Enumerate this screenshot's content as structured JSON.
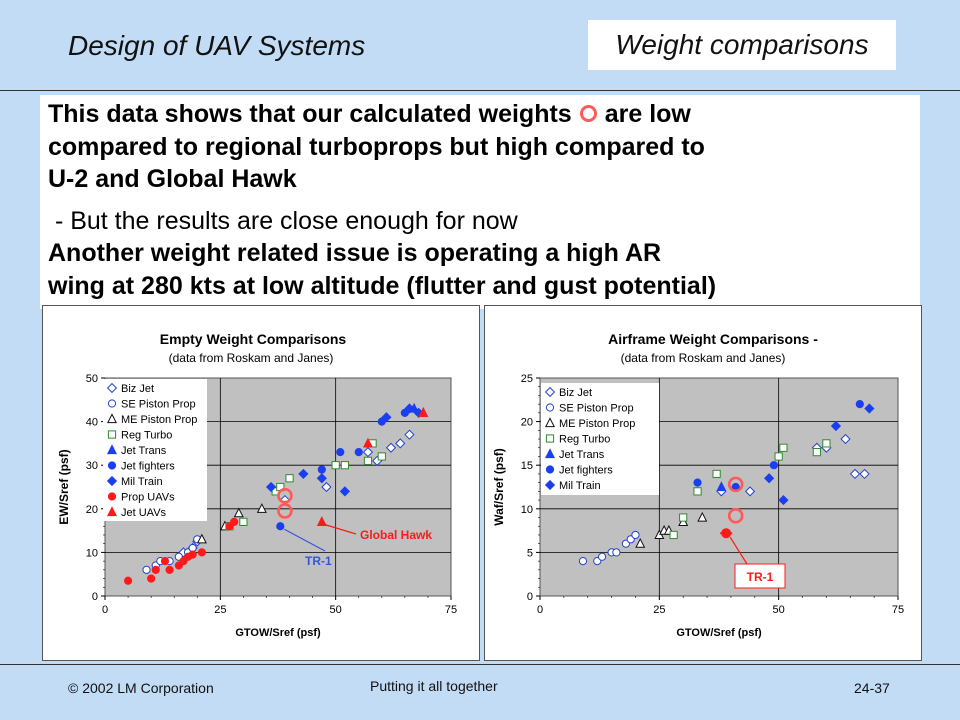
{
  "header": {
    "title": "Design of UAV Systems",
    "section": "Weight comparisons"
  },
  "body": {
    "p1_a": "This data shows that our calculated weights",
    "p1_b": "are low",
    "p1_line2": "compared to regional turboprops but high compared to",
    "p1_line3": "U-2 and Global Hawk",
    "p2": " - But the results are close enough for now",
    "p3_line1": "Another weight related issue is operating a high AR",
    "p3_line2": "wing at 280 kts at low altitude (flutter and gust potential)"
  },
  "footer": {
    "copyright": "© 2002 LM Corporation",
    "center": "Putting it all together",
    "page": "24-37"
  },
  "colors": {
    "background": "#c2dcf6",
    "calc_marker": "#ff5a5a",
    "blue": "#1a3ff0",
    "red": "#ff1a1a",
    "green": "#2e8b2e",
    "plot_bg": "#c0c0c0"
  },
  "chart_data": [
    {
      "type": "scatter",
      "title": "Empty Weight Comparisons",
      "subtitle": "(data from Roskam and Janes)",
      "xlabel": "GTOW/Sref (psf)",
      "ylabel": "EW/Sref (psf)",
      "xlim": [
        0,
        75
      ],
      "ylim": [
        0,
        50
      ],
      "xticks": [
        "0",
        "25",
        "50",
        "75"
      ],
      "yticks": [
        "0",
        "10",
        "20",
        "30",
        "40",
        "50"
      ],
      "grid": true,
      "legend": "top-left",
      "series": [
        {
          "name": "Biz Jet",
          "marker": "diamond-open",
          "color": "#2244cc",
          "points": [
            [
              17,
              10
            ],
            [
              19,
              11
            ],
            [
              20,
              12.5
            ],
            [
              39,
              22
            ],
            [
              48,
              25
            ],
            [
              57,
              33
            ],
            [
              59,
              31
            ],
            [
              62,
              34
            ],
            [
              64,
              35
            ],
            [
              66,
              37
            ]
          ]
        },
        {
          "name": "SE Piston Prop",
          "marker": "circle-open",
          "color": "#2244cc",
          "points": [
            [
              9,
              6
            ],
            [
              11,
              7
            ],
            [
              12,
              8
            ],
            [
              14,
              8
            ],
            [
              16,
              9
            ],
            [
              18,
              10
            ],
            [
              19,
              11
            ],
            [
              20,
              13
            ]
          ]
        },
        {
          "name": "ME Piston Prop",
          "marker": "triangle-open",
          "color": "#111111",
          "points": [
            [
              21,
              13
            ],
            [
              26,
              16
            ],
            [
              29,
              19
            ],
            [
              34,
              20
            ]
          ]
        },
        {
          "name": "Reg Turbo",
          "marker": "square-open",
          "color": "#2e8b2e",
          "points": [
            [
              27,
              16
            ],
            [
              30,
              17
            ],
            [
              37,
              24
            ],
            [
              38,
              25
            ],
            [
              40,
              27
            ],
            [
              50,
              30
            ],
            [
              52,
              30
            ],
            [
              57,
              31
            ],
            [
              58,
              35
            ],
            [
              60,
              32
            ]
          ]
        },
        {
          "name": "Jet Trans",
          "marker": "triangle",
          "color": "#1a3ff0",
          "points": [
            [
              67,
              43
            ],
            [
              69,
              42
            ]
          ]
        },
        {
          "name": "Jet fighters",
          "marker": "circle",
          "color": "#1a3ff0",
          "points": [
            [
              38,
              16
            ],
            [
              47,
              29
            ],
            [
              51,
              33
            ],
            [
              55,
              33
            ],
            [
              60,
              40
            ],
            [
              65,
              42
            ]
          ]
        },
        {
          "name": "Mil Train",
          "marker": "diamond",
          "color": "#1a3ff0",
          "points": [
            [
              36,
              25
            ],
            [
              43,
              28
            ],
            [
              47,
              27
            ],
            [
              52,
              24
            ],
            [
              61,
              41
            ],
            [
              66,
              43
            ],
            [
              68,
              42
            ]
          ]
        },
        {
          "name": "Prop UAVs",
          "marker": "circle",
          "color": "#ff1a1a",
          "points": [
            [
              5,
              3.5
            ],
            [
              10,
              4
            ],
            [
              11,
              6
            ],
            [
              13,
              8
            ],
            [
              14,
              6
            ],
            [
              16,
              7
            ],
            [
              17,
              8
            ],
            [
              18,
              9
            ],
            [
              19,
              9.5
            ],
            [
              21,
              10
            ],
            [
              27,
              16
            ],
            [
              28,
              17
            ]
          ]
        },
        {
          "name": "Jet UAVs",
          "marker": "triangle",
          "color": "#ff1a1a",
          "points": [
            [
              47,
              17
            ],
            [
              57,
              35
            ],
            [
              69,
              42
            ]
          ]
        }
      ],
      "calculated_points": [
        [
          39,
          23
        ],
        [
          39,
          19.5
        ]
      ],
      "annotations": [
        {
          "text": "Global Hawk",
          "target": [
            47,
            17
          ],
          "color": "#ff1a1a"
        },
        {
          "text": "TR-1",
          "target": [
            38,
            16
          ],
          "color": "#3355dd"
        }
      ]
    },
    {
      "type": "scatter",
      "title": "Airframe Weight Comparisons -",
      "subtitle": "(data from Roskam and Janes)",
      "xlabel": "GTOW/Sref (psf)",
      "ylabel": "Waf/Sref (psf)",
      "xlim": [
        0,
        75
      ],
      "ylim": [
        0,
        25
      ],
      "xticks": [
        "0",
        "25",
        "50",
        "75"
      ],
      "yticks": [
        "0",
        "5",
        "10",
        "15",
        "20",
        "25"
      ],
      "grid": true,
      "legend": "top-left",
      "series": [
        {
          "name": "Biz Jet",
          "marker": "diamond-open",
          "color": "#2244cc",
          "points": [
            [
              38,
              12
            ],
            [
              44,
              12
            ],
            [
              58,
              17
            ],
            [
              60,
              17
            ],
            [
              64,
              18
            ],
            [
              66,
              14
            ],
            [
              68,
              14
            ]
          ]
        },
        {
          "name": "SE Piston Prop",
          "marker": "circle-open",
          "color": "#2244cc",
          "points": [
            [
              9,
              4
            ],
            [
              12,
              4
            ],
            [
              13,
              4.5
            ],
            [
              15,
              5
            ],
            [
              16,
              5
            ],
            [
              18,
              6
            ],
            [
              19,
              6.5
            ],
            [
              20,
              7
            ]
          ]
        },
        {
          "name": "ME Piston Prop",
          "marker": "triangle-open",
          "color": "#111111",
          "points": [
            [
              21,
              6
            ],
            [
              25,
              7
            ],
            [
              26,
              7.5
            ],
            [
              27,
              7.5
            ],
            [
              30,
              8.5
            ],
            [
              34,
              9
            ]
          ]
        },
        {
          "name": "Reg Turbo",
          "marker": "square-open",
          "color": "#2e8b2e",
          "points": [
            [
              28,
              7
            ],
            [
              30,
              9
            ],
            [
              33,
              12
            ],
            [
              37,
              14
            ],
            [
              50,
              16
            ],
            [
              51,
              17
            ],
            [
              58,
              16.5
            ],
            [
              60,
              17.5
            ]
          ]
        },
        {
          "name": "Jet Trans",
          "marker": "triangle",
          "color": "#1a3ff0",
          "points": [
            [
              38,
              12.5
            ]
          ]
        },
        {
          "name": "Jet fighters",
          "marker": "circle",
          "color": "#1a3ff0",
          "points": [
            [
              33,
              13
            ],
            [
              41,
              12.5
            ],
            [
              49,
              15
            ],
            [
              67,
              22
            ]
          ]
        },
        {
          "name": "Mil Train",
          "marker": "diamond",
          "color": "#1a3ff0",
          "points": [
            [
              48,
              13.5
            ],
            [
              51,
              11
            ],
            [
              62,
              19.5
            ],
            [
              69,
              21.5
            ]
          ]
        }
      ],
      "calculated_points": [
        [
          41,
          12.8
        ],
        [
          41,
          9.2
        ]
      ],
      "extra_points": [
        [
          39,
          7.2
        ]
      ],
      "annotations": [
        {
          "text": "TR-1",
          "target": [
            39,
            7.2
          ],
          "color": "#ff1a1a"
        }
      ]
    }
  ]
}
